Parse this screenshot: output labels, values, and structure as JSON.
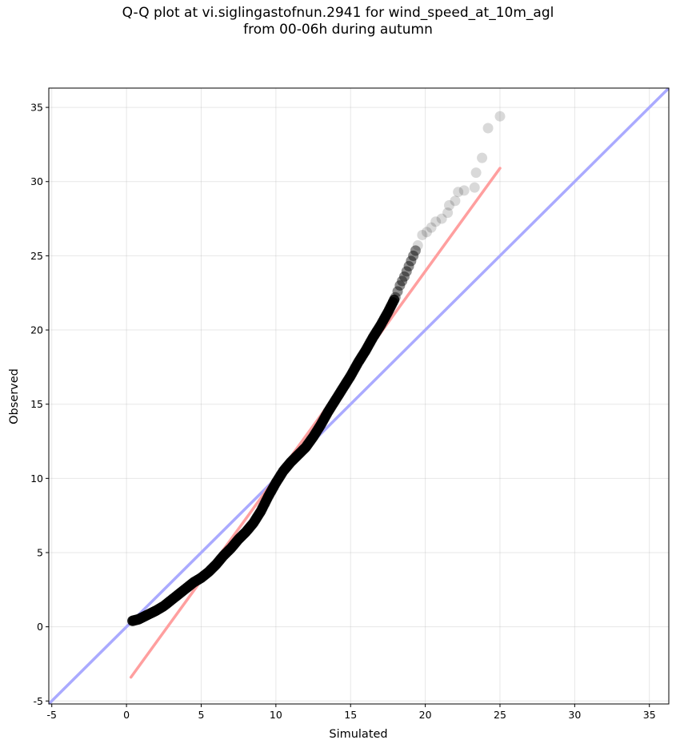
{
  "title_line1": "Q-Q plot at vi.siglingastofnun.2941 for wind_speed_at_10m_agl",
  "title_line2": "from 00-06h during autumn",
  "chart_data": {
    "type": "scatter",
    "xlabel": "Simulated",
    "ylabel": "Observed",
    "xlim": [
      -5.2,
      36.3
    ],
    "ylim": [
      -5.2,
      36.3
    ],
    "xticks": [
      -5,
      0,
      5,
      10,
      15,
      20,
      25,
      30,
      35
    ],
    "yticks": [
      -5,
      0,
      5,
      10,
      15,
      20,
      25,
      30,
      35
    ],
    "grid": true,
    "point_color": "#000000",
    "reference_line": {
      "description": "1:1 line",
      "color": "#aaaaff",
      "x": [
        -5.2,
        36.3
      ],
      "y": [
        -5.2,
        36.3
      ]
    },
    "fit_line": {
      "color": "#ff9f9f",
      "x": [
        0.3,
        25.0
      ],
      "y": [
        -3.4,
        30.9
      ]
    },
    "quantiles": [
      [
        0.4,
        0.4
      ],
      [
        0.8,
        0.5
      ],
      [
        1.2,
        0.7
      ],
      [
        1.6,
        0.9
      ],
      [
        2.0,
        1.1
      ],
      [
        2.5,
        1.4
      ],
      [
        3.0,
        1.8
      ],
      [
        3.5,
        2.2
      ],
      [
        4.0,
        2.6
      ],
      [
        4.5,
        3.0
      ],
      [
        5.0,
        3.3
      ],
      [
        5.5,
        3.7
      ],
      [
        6.0,
        4.2
      ],
      [
        6.5,
        4.8
      ],
      [
        7.0,
        5.3
      ],
      [
        7.5,
        5.9
      ],
      [
        8.0,
        6.4
      ],
      [
        8.5,
        7.0
      ],
      [
        9.0,
        7.8
      ],
      [
        9.5,
        8.8
      ],
      [
        10.0,
        9.7
      ],
      [
        10.5,
        10.5
      ],
      [
        11.0,
        11.1
      ],
      [
        11.5,
        11.6
      ],
      [
        12.0,
        12.1
      ],
      [
        12.5,
        12.8
      ],
      [
        13.0,
        13.6
      ],
      [
        13.5,
        14.5
      ],
      [
        14.0,
        15.3
      ],
      [
        14.5,
        16.1
      ],
      [
        15.0,
        16.9
      ],
      [
        15.5,
        17.8
      ],
      [
        16.0,
        18.6
      ],
      [
        16.5,
        19.5
      ],
      [
        17.0,
        20.3
      ],
      [
        17.5,
        21.2
      ],
      [
        18.0,
        22.2
      ],
      [
        18.3,
        23.0
      ],
      [
        18.6,
        23.6
      ],
      [
        18.9,
        24.3
      ],
      [
        19.2,
        25.0
      ],
      [
        19.5,
        25.7
      ],
      [
        19.8,
        26.4
      ],
      [
        20.1,
        26.6
      ],
      [
        20.4,
        26.9
      ],
      [
        20.7,
        27.3
      ],
      [
        21.1,
        27.5
      ],
      [
        21.5,
        27.9
      ],
      [
        21.6,
        28.4
      ],
      [
        22.0,
        28.7
      ],
      [
        22.2,
        29.3
      ],
      [
        22.6,
        29.4
      ],
      [
        23.3,
        29.6
      ],
      [
        23.4,
        30.6
      ],
      [
        23.8,
        31.6
      ],
      [
        24.2,
        33.6
      ],
      [
        25.0,
        34.4
      ]
    ]
  }
}
